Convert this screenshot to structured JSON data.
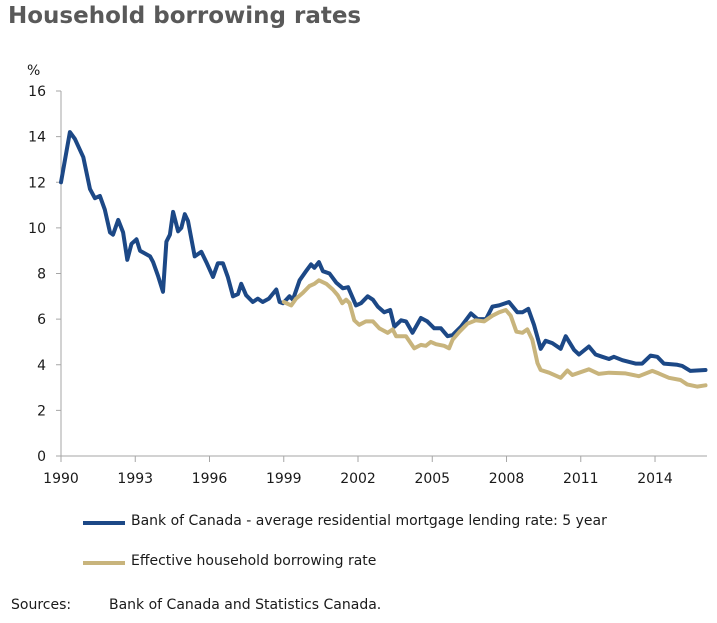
{
  "chart_data": {
    "type": "line",
    "title": "Household borrowing rates",
    "ylabel": "%",
    "xlabel": "",
    "xlim": [
      1990,
      2016.1
    ],
    "ylim": [
      0,
      16
    ],
    "yticks": [
      0,
      2,
      4,
      6,
      8,
      10,
      12,
      14,
      16
    ],
    "xticks": [
      1990,
      1993,
      1996,
      1999,
      2002,
      2005,
      2008,
      2011,
      2014
    ],
    "grid": false,
    "legend_position": "bottom",
    "series": [
      {
        "name": "Bank of Canada - average residential mortgage lending rate: 5 year",
        "color": "#1c4886",
        "x": [
          1990.0,
          1990.36,
          1990.56,
          1990.9,
          1991.17,
          1991.37,
          1991.57,
          1991.77,
          1991.98,
          1992.1,
          1992.31,
          1992.51,
          1992.68,
          1992.85,
          1993.05,
          1993.19,
          1993.6,
          1993.72,
          1993.92,
          1994.12,
          1994.26,
          1994.4,
          1994.53,
          1994.73,
          1994.86,
          1995.0,
          1995.13,
          1995.4,
          1995.67,
          1995.87,
          1996.14,
          1996.34,
          1996.54,
          1996.74,
          1996.95,
          1997.15,
          1997.28,
          1997.48,
          1997.75,
          1997.95,
          1998.15,
          1998.4,
          1998.7,
          1998.83,
          1998.97,
          1999.23,
          1999.37,
          1999.64,
          1999.9,
          2000.1,
          2000.24,
          2000.42,
          2000.58,
          2000.85,
          2001.12,
          2001.39,
          2001.6,
          2001.92,
          2002.12,
          2002.39,
          2002.6,
          2002.8,
          2003.06,
          2003.3,
          2003.47,
          2003.74,
          2003.94,
          2004.2,
          2004.54,
          2004.8,
          2005.08,
          2005.35,
          2005.62,
          2005.82,
          2006.16,
          2006.56,
          2006.83,
          2007.17,
          2007.43,
          2007.7,
          2008.1,
          2008.44,
          2008.64,
          2008.88,
          2009.11,
          2009.38,
          2009.58,
          2009.85,
          2010.19,
          2010.39,
          2010.73,
          2010.93,
          2011.33,
          2011.6,
          2011.87,
          2012.14,
          2012.34,
          2012.68,
          2013.21,
          2013.48,
          2013.82,
          2014.09,
          2014.36,
          2014.9,
          2015.1,
          2015.43,
          2016.04
        ],
        "values": [
          12.0,
          14.2,
          13.9,
          13.1,
          11.7,
          11.3,
          11.4,
          10.8,
          9.8,
          9.7,
          10.35,
          9.8,
          8.6,
          9.3,
          9.5,
          9.0,
          8.75,
          8.5,
          7.9,
          7.2,
          9.4,
          9.7,
          10.7,
          9.85,
          10.0,
          10.6,
          10.3,
          8.75,
          8.95,
          8.5,
          7.85,
          8.45,
          8.45,
          7.85,
          7.0,
          7.1,
          7.55,
          7.05,
          6.75,
          6.9,
          6.75,
          6.9,
          7.3,
          6.75,
          6.7,
          7.0,
          6.85,
          7.7,
          8.1,
          8.4,
          8.25,
          8.5,
          8.1,
          8.0,
          7.6,
          7.35,
          7.4,
          6.6,
          6.7,
          7.0,
          6.85,
          6.55,
          6.3,
          6.4,
          5.67,
          5.95,
          5.9,
          5.4,
          6.05,
          5.9,
          5.6,
          5.6,
          5.25,
          5.3,
          5.67,
          6.25,
          6.0,
          6.0,
          6.55,
          6.6,
          6.75,
          6.3,
          6.3,
          6.45,
          5.75,
          4.7,
          5.05,
          4.95,
          4.7,
          5.25,
          4.65,
          4.45,
          4.8,
          4.45,
          4.35,
          4.25,
          4.35,
          4.2,
          4.05,
          4.05,
          4.4,
          4.35,
          4.05,
          4.0,
          3.95,
          3.73,
          3.77
        ]
      },
      {
        "name": "Effective household borrowing rate",
        "color": "#c8b47c",
        "x": [
          1999.0,
          1999.3,
          1999.5,
          1999.77,
          2000.04,
          2000.24,
          2000.42,
          2000.72,
          2000.98,
          2001.18,
          2001.36,
          2001.52,
          2001.66,
          2001.85,
          2002.05,
          2002.32,
          2002.6,
          2002.86,
          2003.2,
          2003.4,
          2003.54,
          2003.94,
          2004.27,
          2004.54,
          2004.74,
          2004.94,
          2005.15,
          2005.48,
          2005.68,
          2005.82,
          2006.1,
          2006.42,
          2006.76,
          2007.1,
          2007.43,
          2007.7,
          2007.97,
          2008.17,
          2008.4,
          2008.64,
          2008.84,
          2009.04,
          2009.25,
          2009.38,
          2009.72,
          2010.19,
          2010.46,
          2010.66,
          2011.33,
          2011.73,
          2012.14,
          2012.81,
          2013.35,
          2013.89,
          2014.15,
          2014.56,
          2015.03,
          2015.3,
          2015.7,
          2016.04
        ],
        "values": [
          6.75,
          6.6,
          6.9,
          7.15,
          7.45,
          7.55,
          7.7,
          7.55,
          7.3,
          7.05,
          6.7,
          6.85,
          6.7,
          5.95,
          5.75,
          5.9,
          5.9,
          5.6,
          5.4,
          5.55,
          5.25,
          5.25,
          4.72,
          4.87,
          4.83,
          5.0,
          4.9,
          4.83,
          4.72,
          5.1,
          5.45,
          5.8,
          5.95,
          5.9,
          6.15,
          6.3,
          6.4,
          6.15,
          5.45,
          5.4,
          5.55,
          5.1,
          4.07,
          3.77,
          3.65,
          3.43,
          3.75,
          3.55,
          3.8,
          3.6,
          3.65,
          3.62,
          3.5,
          3.73,
          3.62,
          3.43,
          3.33,
          3.14,
          3.04,
          3.1
        ]
      }
    ]
  },
  "sources": {
    "label": "Sources:",
    "text": "Bank of Canada and Statistics Canada."
  }
}
